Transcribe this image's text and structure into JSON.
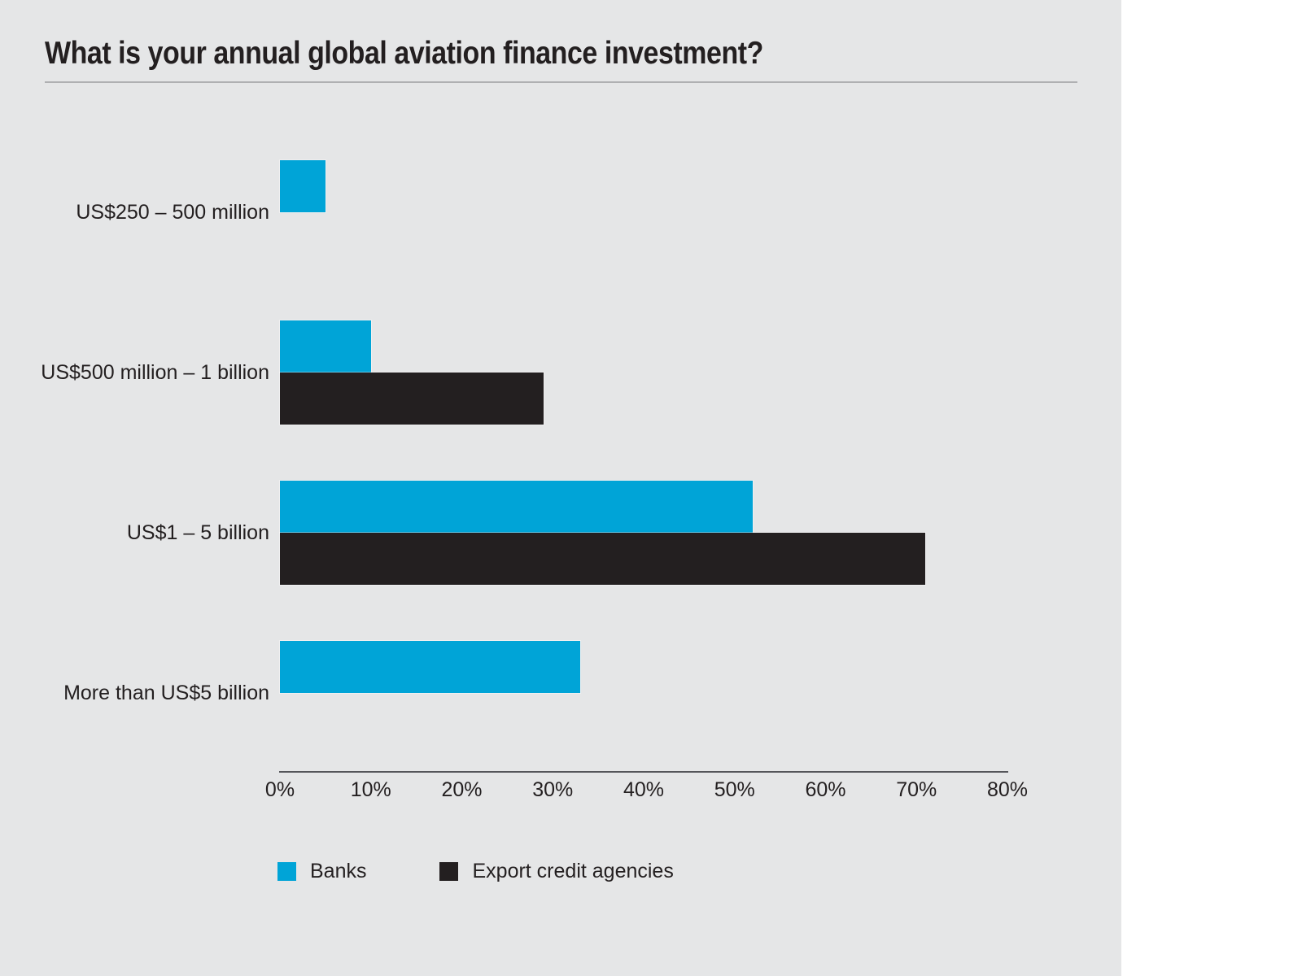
{
  "page": {
    "panel_background": "#E5E6E7",
    "right_strip_background": "#FFFFFF"
  },
  "chart_data": {
    "type": "bar",
    "orientation": "horizontal",
    "title": "What is your annual global aviation finance investment?",
    "categories": [
      "US$250 – 500 million",
      "US$500 million – 1 billion",
      "US$1 – 5 billion",
      "More than US$5 billion"
    ],
    "series": [
      {
        "name": "Banks",
        "color": "#00A4D7",
        "values": [
          5,
          10,
          52,
          33
        ]
      },
      {
        "name": "Export credit agencies",
        "color": "#231F20",
        "values": [
          0,
          29,
          71,
          0
        ]
      }
    ],
    "x_axis": {
      "min": 0,
      "max": 80,
      "tick_step": 10,
      "unit": "%",
      "tick_labels": [
        "0%",
        "10%",
        "20%",
        "30%",
        "40%",
        "50%",
        "60%",
        "70%",
        "80%"
      ]
    },
    "legend": {
      "position": "bottom",
      "entries": [
        "Banks",
        "Export credit agencies"
      ]
    },
    "grid": false,
    "colors": {
      "title_text": "#231F20",
      "axis_line": "#55565A",
      "title_rule": "#AFB0B2"
    }
  }
}
